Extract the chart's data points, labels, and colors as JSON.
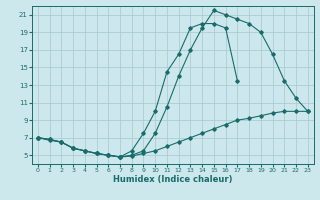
{
  "xlabel": "Humidex (Indice chaleur)",
  "background_color": "#cce8ec",
  "grid_color": "#aacdd4",
  "line_color": "#1a6b6b",
  "xlim": [
    -0.5,
    23.5
  ],
  "ylim": [
    4.0,
    22.0
  ],
  "xticks": [
    0,
    1,
    2,
    3,
    4,
    5,
    6,
    7,
    8,
    9,
    10,
    11,
    12,
    13,
    14,
    15,
    16,
    17,
    18,
    19,
    20,
    21,
    22,
    23
  ],
  "yticks": [
    5,
    7,
    9,
    11,
    13,
    15,
    17,
    19,
    21
  ],
  "line1_x": [
    0,
    1,
    2,
    3,
    4,
    5,
    6,
    7,
    8,
    9,
    10,
    11,
    12,
    13,
    14,
    15,
    16,
    17,
    18,
    19,
    20,
    21,
    22,
    23
  ],
  "line1_y": [
    7.0,
    6.8,
    6.5,
    5.8,
    5.5,
    5.2,
    5.0,
    4.8,
    4.9,
    5.2,
    5.5,
    6.0,
    6.5,
    7.0,
    7.5,
    8.0,
    8.5,
    9.0,
    9.2,
    9.5,
    9.8,
    10.0,
    10.0,
    10.0
  ],
  "line2_x": [
    0,
    1,
    2,
    3,
    4,
    5,
    6,
    7,
    8,
    9,
    10,
    11,
    12,
    13,
    14,
    15,
    16,
    17
  ],
  "line2_y": [
    7.0,
    6.8,
    6.5,
    5.8,
    5.5,
    5.2,
    5.0,
    4.8,
    5.5,
    7.5,
    10.0,
    14.5,
    16.5,
    19.5,
    20.0,
    20.0,
    19.5,
    13.5
  ],
  "line3_x": [
    0,
    1,
    2,
    3,
    4,
    5,
    6,
    7,
    8,
    9,
    10,
    11,
    12,
    13,
    14,
    15,
    16,
    17,
    18,
    19,
    20,
    21,
    22,
    23
  ],
  "line3_y": [
    7.0,
    6.7,
    6.5,
    5.8,
    5.5,
    5.2,
    5.0,
    4.8,
    5.0,
    5.5,
    7.5,
    10.5,
    14.0,
    17.0,
    19.5,
    21.5,
    21.0,
    20.5,
    20.0,
    19.0,
    16.5,
    13.5,
    11.5,
    10.0
  ]
}
